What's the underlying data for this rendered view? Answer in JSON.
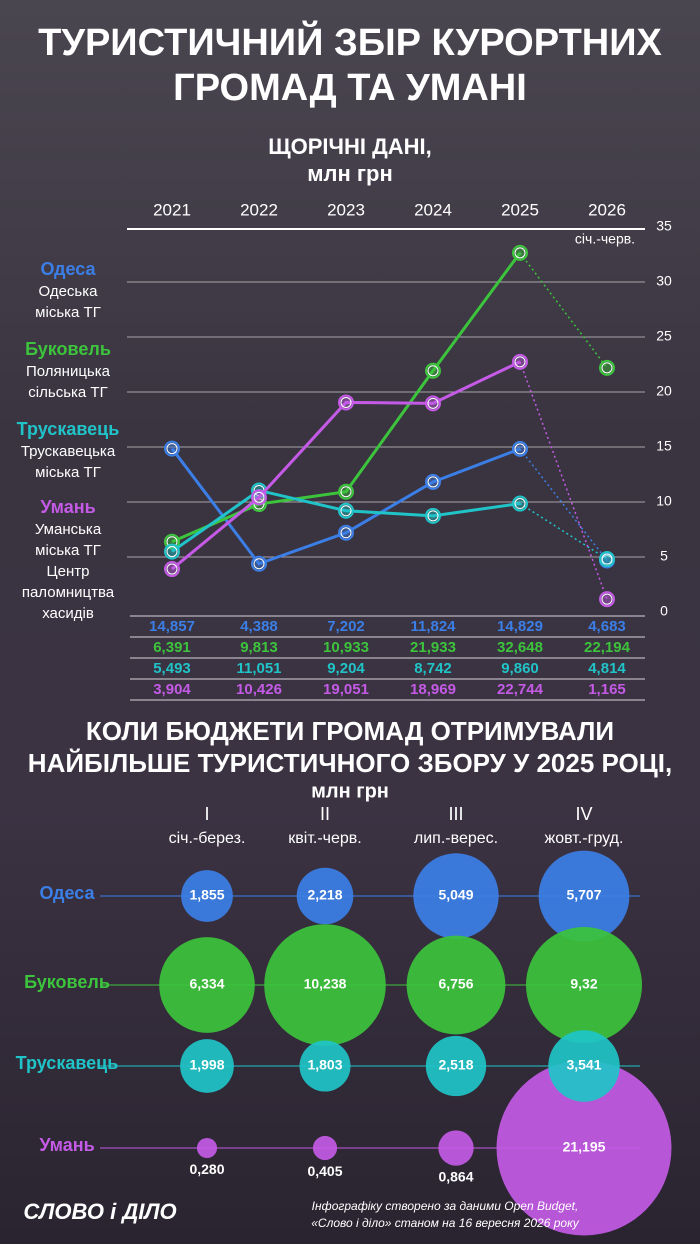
{
  "title": [
    "ТУРИСТИЧНИЙ ЗБІР КУРОРТНИХ",
    "ГРОМАД ТА УМАНІ"
  ],
  "chart_data": [
    {
      "type": "line",
      "title": "ЩОРІЧНІ ДАНІ,",
      "subtitle": "млн грн",
      "categories": [
        "2021",
        "2022",
        "2023",
        "2024",
        "2025",
        "2026"
      ],
      "partial_period_label": "січ.-черв.",
      "last_segment_style": "dotted",
      "ylim": [
        0,
        35
      ],
      "yticks": [
        0,
        5,
        10,
        15,
        20,
        25,
        30,
        35
      ],
      "grid": true,
      "series": [
        {
          "name": "Одеса",
          "description": [
            "Одеська",
            "міська ТГ"
          ],
          "color": "#3b7fe6",
          "values": [
            14.857,
            4.388,
            7.202,
            11.824,
            14.829,
            4.683
          ],
          "value_labels": [
            "14,857",
            "4,388",
            "7,202",
            "11,824",
            "14,829",
            "4,683"
          ]
        },
        {
          "name": "Буковель",
          "description": [
            "Поляницька",
            "сільська ТГ"
          ],
          "color": "#3cc43c",
          "values": [
            6.391,
            9.813,
            10.933,
            21.933,
            32.648,
            22.194
          ],
          "value_labels": [
            "6,391",
            "9,813",
            "10,933",
            "21,933",
            "32,648",
            "22,194"
          ]
        },
        {
          "name": "Трускавець",
          "description": [
            "Трускавецька",
            "міська ТГ"
          ],
          "color": "#20c4c8",
          "values": [
            5.493,
            11.051,
            9.204,
            8.742,
            9.86,
            4.814
          ],
          "value_labels": [
            "5,493",
            "11,051",
            "9,204",
            "8,742",
            "9,860",
            "4,814"
          ]
        },
        {
          "name": "Умань",
          "description": [
            "Уманська",
            "міська ТГ",
            "Центр",
            "паломництва",
            "хасидів"
          ],
          "color": "#c45ae6",
          "values": [
            3.904,
            10.426,
            19.051,
            18.969,
            22.744,
            1.165
          ],
          "value_labels": [
            "3,904",
            "10,426",
            "19,051",
            "18,969",
            "22,744",
            "1,165"
          ]
        }
      ]
    },
    {
      "type": "bubble",
      "title": [
        "КОЛИ БЮДЖЕТИ ГРОМАД ОТРИМУВАЛИ",
        "НАЙБІЛЬШЕ ТУРИСТИЧНОГО ЗБОРУ У 2025 РОЦІ,"
      ],
      "subtitle": "млн грн",
      "categories": [
        "I",
        "II",
        "III",
        "IV"
      ],
      "category_labels": [
        "січ.-берез.",
        "квіт.-черв.",
        "лип.-верес.",
        "жовт.-груд."
      ],
      "series": [
        {
          "name": "Одеса",
          "color": "#3b7fe6",
          "values": [
            1.855,
            2.218,
            5.049,
            5.707
          ],
          "value_labels": [
            "1,855",
            "2,218",
            "5,049",
            "5,707"
          ]
        },
        {
          "name": "Буковель",
          "color": "#3cc43c",
          "values": [
            6.334,
            10.238,
            6.756,
            9.32
          ],
          "value_labels": [
            "6,334",
            "10,238",
            "6,756",
            "9,32"
          ]
        },
        {
          "name": "Трускавець",
          "color": "#20c4c8",
          "values": [
            1.998,
            1.803,
            2.518,
            3.541
          ],
          "value_labels": [
            "1,998",
            "1,803",
            "2,518",
            "3,541"
          ]
        },
        {
          "name": "Умань",
          "color": "#c45ae6",
          "values": [
            0.28,
            0.405,
            0.864,
            21.195
          ],
          "value_labels": [
            "0,280",
            "0,405",
            "0,864",
            "21,195"
          ]
        }
      ]
    }
  ],
  "logo": "СЛОВО і ДІЛО",
  "footer": [
    "Інфографіку створено за даними Open Budget,",
    "«Слово і діло» станом на 16 вересня 2026 року"
  ]
}
